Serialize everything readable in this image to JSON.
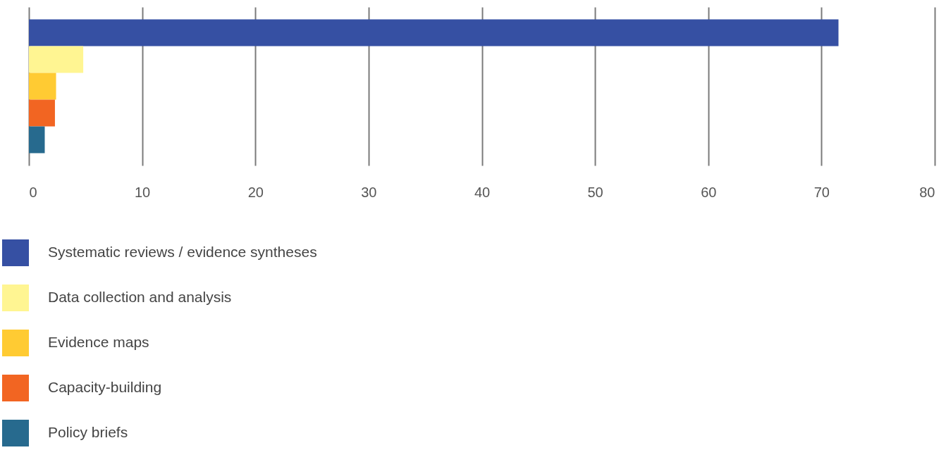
{
  "chart_data": {
    "type": "bar",
    "orientation": "horizontal",
    "categories": [
      null
    ],
    "series": [
      {
        "name": "Systematic reviews / evidence syntheses",
        "color": "#3650a3",
        "values": [
          71.5
        ]
      },
      {
        "name": "Data collection and analysis",
        "color": "#fff592",
        "values": [
          4.8
        ]
      },
      {
        "name": "Evidence maps",
        "color": "#ffcb33",
        "values": [
          2.4
        ]
      },
      {
        "name": "Capacity-building",
        "color": "#f26522",
        "values": [
          2.3
        ]
      },
      {
        "name": "Policy briefs",
        "color": "#276a8e",
        "values": [
          1.4
        ]
      }
    ],
    "xlim": [
      0,
      80
    ],
    "xticks": [
      0,
      10,
      20,
      30,
      40,
      50,
      60,
      70,
      80
    ],
    "grid": "x",
    "legend": "bottom",
    "tick_labels": "x"
  }
}
